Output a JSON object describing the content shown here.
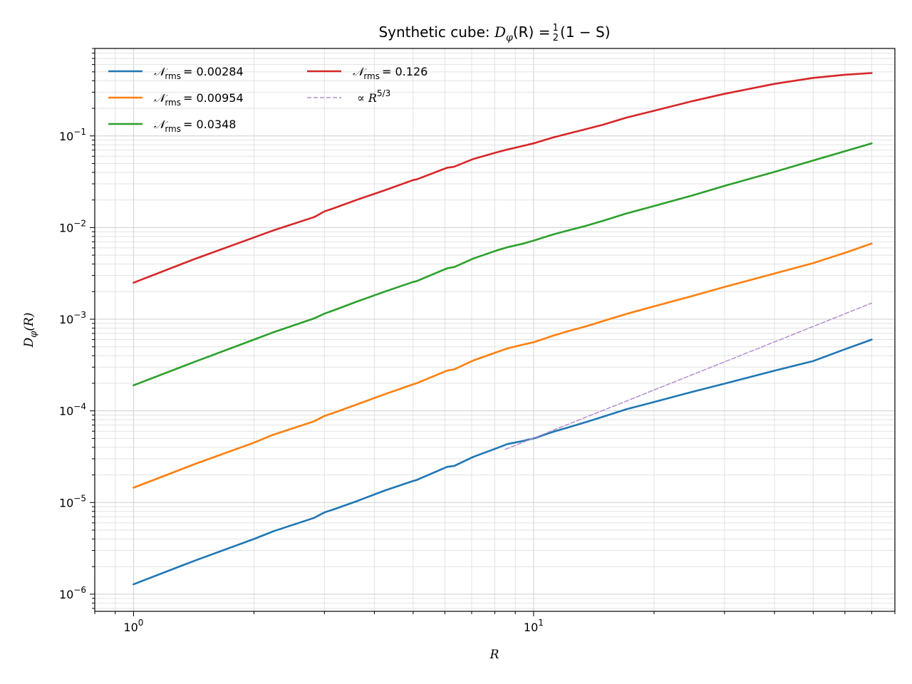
{
  "chart_data": {
    "type": "line",
    "title": "Synthetic cube: D_φ(R) = ½(1 − S)",
    "title_parts": {
      "prefix": "Synthetic cube: ",
      "func": "D",
      "func_sub": "φ",
      "func_arg": "(R) =",
      "frac_num": "1",
      "frac_den": "2",
      "rest": "(1 − S)"
    },
    "xlabel": "R",
    "ylabel": "D_φ(R)",
    "ylabel_parts": {
      "base": "D",
      "sub": "φ",
      "arg": "(R)"
    },
    "xscale": "log",
    "yscale": "log",
    "xlim": [
      0.8,
      80
    ],
    "ylim": [
      6.5e-07,
      0.9
    ],
    "grid": true,
    "legend_position": "upper-left",
    "legend_columns": 2,
    "x_ticks": [
      {
        "value": 1,
        "base": "10",
        "exp": "0"
      },
      {
        "value": 10,
        "base": "10",
        "exp": "1"
      }
    ],
    "y_ticks": [
      {
        "value": 1e-06,
        "base": "10",
        "exp": "−6"
      },
      {
        "value": 1e-05,
        "base": "10",
        "exp": "−5"
      },
      {
        "value": 0.0001,
        "base": "10",
        "exp": "−4"
      },
      {
        "value": 0.001,
        "base": "10",
        "exp": "−3"
      },
      {
        "value": 0.01,
        "base": "10",
        "exp": "−2"
      },
      {
        "value": 0.1,
        "base": "10",
        "exp": "−1"
      }
    ],
    "series": [
      {
        "name": "𝒩rms = 0.00284",
        "label_main": "𝒩",
        "label_sub": "rms",
        "label_value": "= 0.00284",
        "color": "#1f77b4",
        "style": "solid",
        "x": [
          1,
          1.414,
          2,
          2.236,
          2.828,
          3,
          3.162,
          3.606,
          4.243,
          5,
          5.099,
          6.083,
          6.325,
          7.071,
          8.062,
          8.602,
          9.434,
          10,
          11.18,
          12.207,
          13.454,
          14.866,
          17.029,
          20,
          25,
          30,
          40,
          50,
          60,
          70
        ],
        "y": [
          1.28e-06,
          2.3e-06,
          4e-06,
          4.85e-06,
          6.8e-06,
          7.8e-06,
          8.4e-06,
          1.03e-05,
          1.35e-05,
          1.72e-05,
          1.76e-05,
          2.45e-05,
          2.5e-05,
          3.15e-05,
          3.9e-05,
          4.35e-05,
          4.7e-05,
          5e-05,
          5.9e-05,
          6.6e-05,
          7.5e-05,
          8.6e-05,
          0.000104,
          0.000125,
          0.000162,
          0.000198,
          0.000274,
          0.00035,
          0.00047,
          0.0006
        ]
      },
      {
        "name": "𝒩rms = 0.00954",
        "label_main": "𝒩",
        "label_sub": "rms",
        "label_value": "= 0.00954",
        "color": "#ff7f0e",
        "style": "solid",
        "x": [
          1,
          1.414,
          2,
          2.236,
          2.828,
          3,
          3.162,
          3.606,
          4.243,
          5,
          5.099,
          6.083,
          6.325,
          7.071,
          8.062,
          8.602,
          9.434,
          10,
          11.18,
          12.207,
          13.454,
          14.866,
          17.029,
          20,
          25,
          30,
          40,
          50,
          60,
          70
        ],
        "y": [
          1.45e-05,
          2.6e-05,
          4.5e-05,
          5.5e-05,
          7.7e-05,
          8.8e-05,
          9.5e-05,
          0.000117,
          0.000152,
          0.000195,
          0.0002,
          0.000275,
          0.000283,
          0.000355,
          0.000435,
          0.00048,
          0.00053,
          0.00056,
          0.00066,
          0.00074,
          0.00083,
          0.00095,
          0.00114,
          0.00138,
          0.0018,
          0.00225,
          0.00315,
          0.0041,
          0.0053,
          0.0067
        ]
      },
      {
        "name": "𝒩rms = 0.0348",
        "label_main": "𝒩",
        "label_sub": "rms",
        "label_value": "= 0.0348",
        "color": "#2ca02c",
        "style": "solid",
        "x": [
          1,
          1.414,
          2,
          2.236,
          2.828,
          3,
          3.162,
          3.606,
          4.243,
          5,
          5.099,
          6.083,
          6.325,
          7.071,
          8.062,
          8.602,
          9.434,
          10,
          11.18,
          12.207,
          13.454,
          14.866,
          17.029,
          20,
          25,
          30,
          40,
          50,
          60,
          70
        ],
        "y": [
          0.00019,
          0.00034,
          0.0006,
          0.00072,
          0.00102,
          0.00115,
          0.00125,
          0.00155,
          0.002,
          0.00255,
          0.0026,
          0.0036,
          0.0037,
          0.0046,
          0.0056,
          0.0061,
          0.0067,
          0.0072,
          0.0084,
          0.0093,
          0.0104,
          0.0118,
          0.0142,
          0.0172,
          0.0225,
          0.0285,
          0.0405,
          0.054,
          0.068,
          0.083
        ]
      },
      {
        "name": "𝒩rms = 0.126",
        "label_main": "𝒩",
        "label_sub": "rms",
        "label_value": "= 0.126",
        "color": "#d62728",
        "style": "solid",
        "x": [
          1,
          1.414,
          2,
          2.236,
          2.828,
          3,
          3.162,
          3.606,
          4.243,
          5,
          5.099,
          6.083,
          6.325,
          7.071,
          8.062,
          8.602,
          9.434,
          10,
          11.18,
          12.207,
          13.454,
          14.866,
          17.029,
          20,
          25,
          30,
          40,
          50,
          60,
          70
        ],
        "y": [
          0.0025,
          0.0045,
          0.0078,
          0.0093,
          0.013,
          0.015,
          0.0162,
          0.02,
          0.0255,
          0.033,
          0.0335,
          0.045,
          0.046,
          0.056,
          0.066,
          0.071,
          0.078,
          0.083,
          0.096,
          0.106,
          0.118,
          0.132,
          0.158,
          0.188,
          0.24,
          0.288,
          0.37,
          0.43,
          0.465,
          0.485
        ]
      },
      {
        "name": "∝ R^5/3",
        "label_main": "∝ R",
        "label_sup": "5/3",
        "color": "#b48ed0",
        "style": "dashed",
        "x": [
          8.5,
          70
        ],
        "y": [
          3.8e-05,
          0.0015
        ]
      }
    ]
  }
}
